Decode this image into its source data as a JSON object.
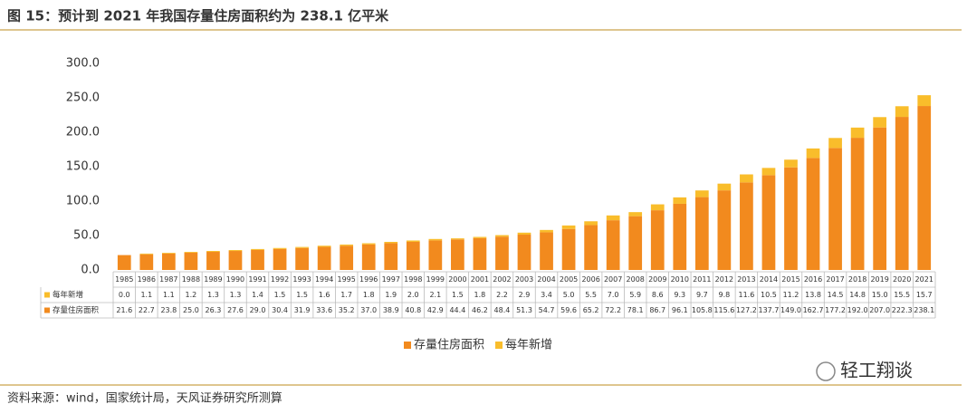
{
  "title": "图 15：预计到 2021 年我国存量住房面积约为 238.1 亿平米",
  "source": "资料来源：wind，国家统计局，天风证券研究所测算",
  "watermark": "轻工翔谈",
  "chart_data": {
    "type": "stacked_bar",
    "categories": [
      "1985",
      "1986",
      "1987",
      "1988",
      "1989",
      "1990",
      "1991",
      "1992",
      "1993",
      "1994",
      "1995",
      "1996",
      "1997",
      "1998",
      "1999",
      "2000",
      "2001",
      "2002",
      "2003",
      "2004",
      "2005",
      "2006",
      "2007",
      "2008",
      "2009",
      "2010",
      "2011",
      "2012",
      "2013",
      "2014",
      "2015",
      "2016",
      "2017",
      "2018",
      "2019",
      "2020",
      "2021"
    ],
    "series": [
      {
        "name": "存量住房面积",
        "color": "#f28a1e",
        "values": [
          21.6,
          22.7,
          23.8,
          25.0,
          26.3,
          27.6,
          29.0,
          30.4,
          31.9,
          33.6,
          35.2,
          37.0,
          38.9,
          40.8,
          42.9,
          44.4,
          46.2,
          48.4,
          51.3,
          54.7,
          59.6,
          65.2,
          72.2,
          78.1,
          86.7,
          96.1,
          105.8,
          115.6,
          127.2,
          137.7,
          149.0,
          162.7,
          177.2,
          192.0,
          207.0,
          222.3,
          238.1
        ],
        "value_labels": [
          "21.6",
          "22.7",
          "23.8",
          "25.0",
          "26.3",
          "27.6",
          "29.0",
          "30.4",
          "31.9",
          "33.6",
          "35.2",
          "37.0",
          "38.9",
          "40.8",
          "42.9",
          "44.4",
          "46.2",
          "48.4",
          "51.3",
          "54.7",
          "59.6",
          "65.2",
          "72.2",
          "78.1",
          "86.7",
          "96.1",
          "105.8",
          "115.6",
          "127.2",
          "137.7",
          "149.0",
          "162.7",
          "177.2",
          "192.0",
          "207.0",
          "222.3",
          "238.1"
        ]
      },
      {
        "name": "每年新增",
        "color": "#f9bd2b",
        "values": [
          0.0,
          1.1,
          1.1,
          1.2,
          1.3,
          1.3,
          1.4,
          1.5,
          1.5,
          1.6,
          1.7,
          1.8,
          1.9,
          2.0,
          2.1,
          1.5,
          1.8,
          2.2,
          2.9,
          3.4,
          5.0,
          5.5,
          7.0,
          5.9,
          8.6,
          9.3,
          9.7,
          9.8,
          11.6,
          10.5,
          11.2,
          13.8,
          14.5,
          14.8,
          15.0,
          15.5,
          15.7
        ],
        "value_labels": [
          "0.0",
          "1.1",
          "1.1",
          "1.2",
          "1.3",
          "1.3",
          "1.4",
          "1.5",
          "1.5",
          "1.6",
          "1.7",
          "1.8",
          "1.9",
          "2.0",
          "2.1",
          "1.5",
          "1.8",
          "2.2",
          "2.9",
          "3.4",
          "5.0",
          "5.5",
          "7.0",
          "5.9",
          "8.6",
          "9.3",
          "9.7",
          "9.8",
          "11.6",
          "10.5",
          "11.2",
          "13.8",
          "14.5",
          "14.8",
          "15.0",
          "15.5",
          "15.7"
        ]
      }
    ],
    "ylim": [
      0,
      300
    ],
    "yticks": [
      {
        "value": 0,
        "label": "0.0"
      },
      {
        "value": 50,
        "label": "50.0"
      },
      {
        "value": 100,
        "label": "100.0"
      },
      {
        "value": 150,
        "label": "150.0"
      },
      {
        "value": 200,
        "label": "200.0"
      },
      {
        "value": 250,
        "label": "250.0"
      },
      {
        "value": 300,
        "label": "300.0"
      }
    ],
    "grid": false,
    "legend": "bottom"
  }
}
